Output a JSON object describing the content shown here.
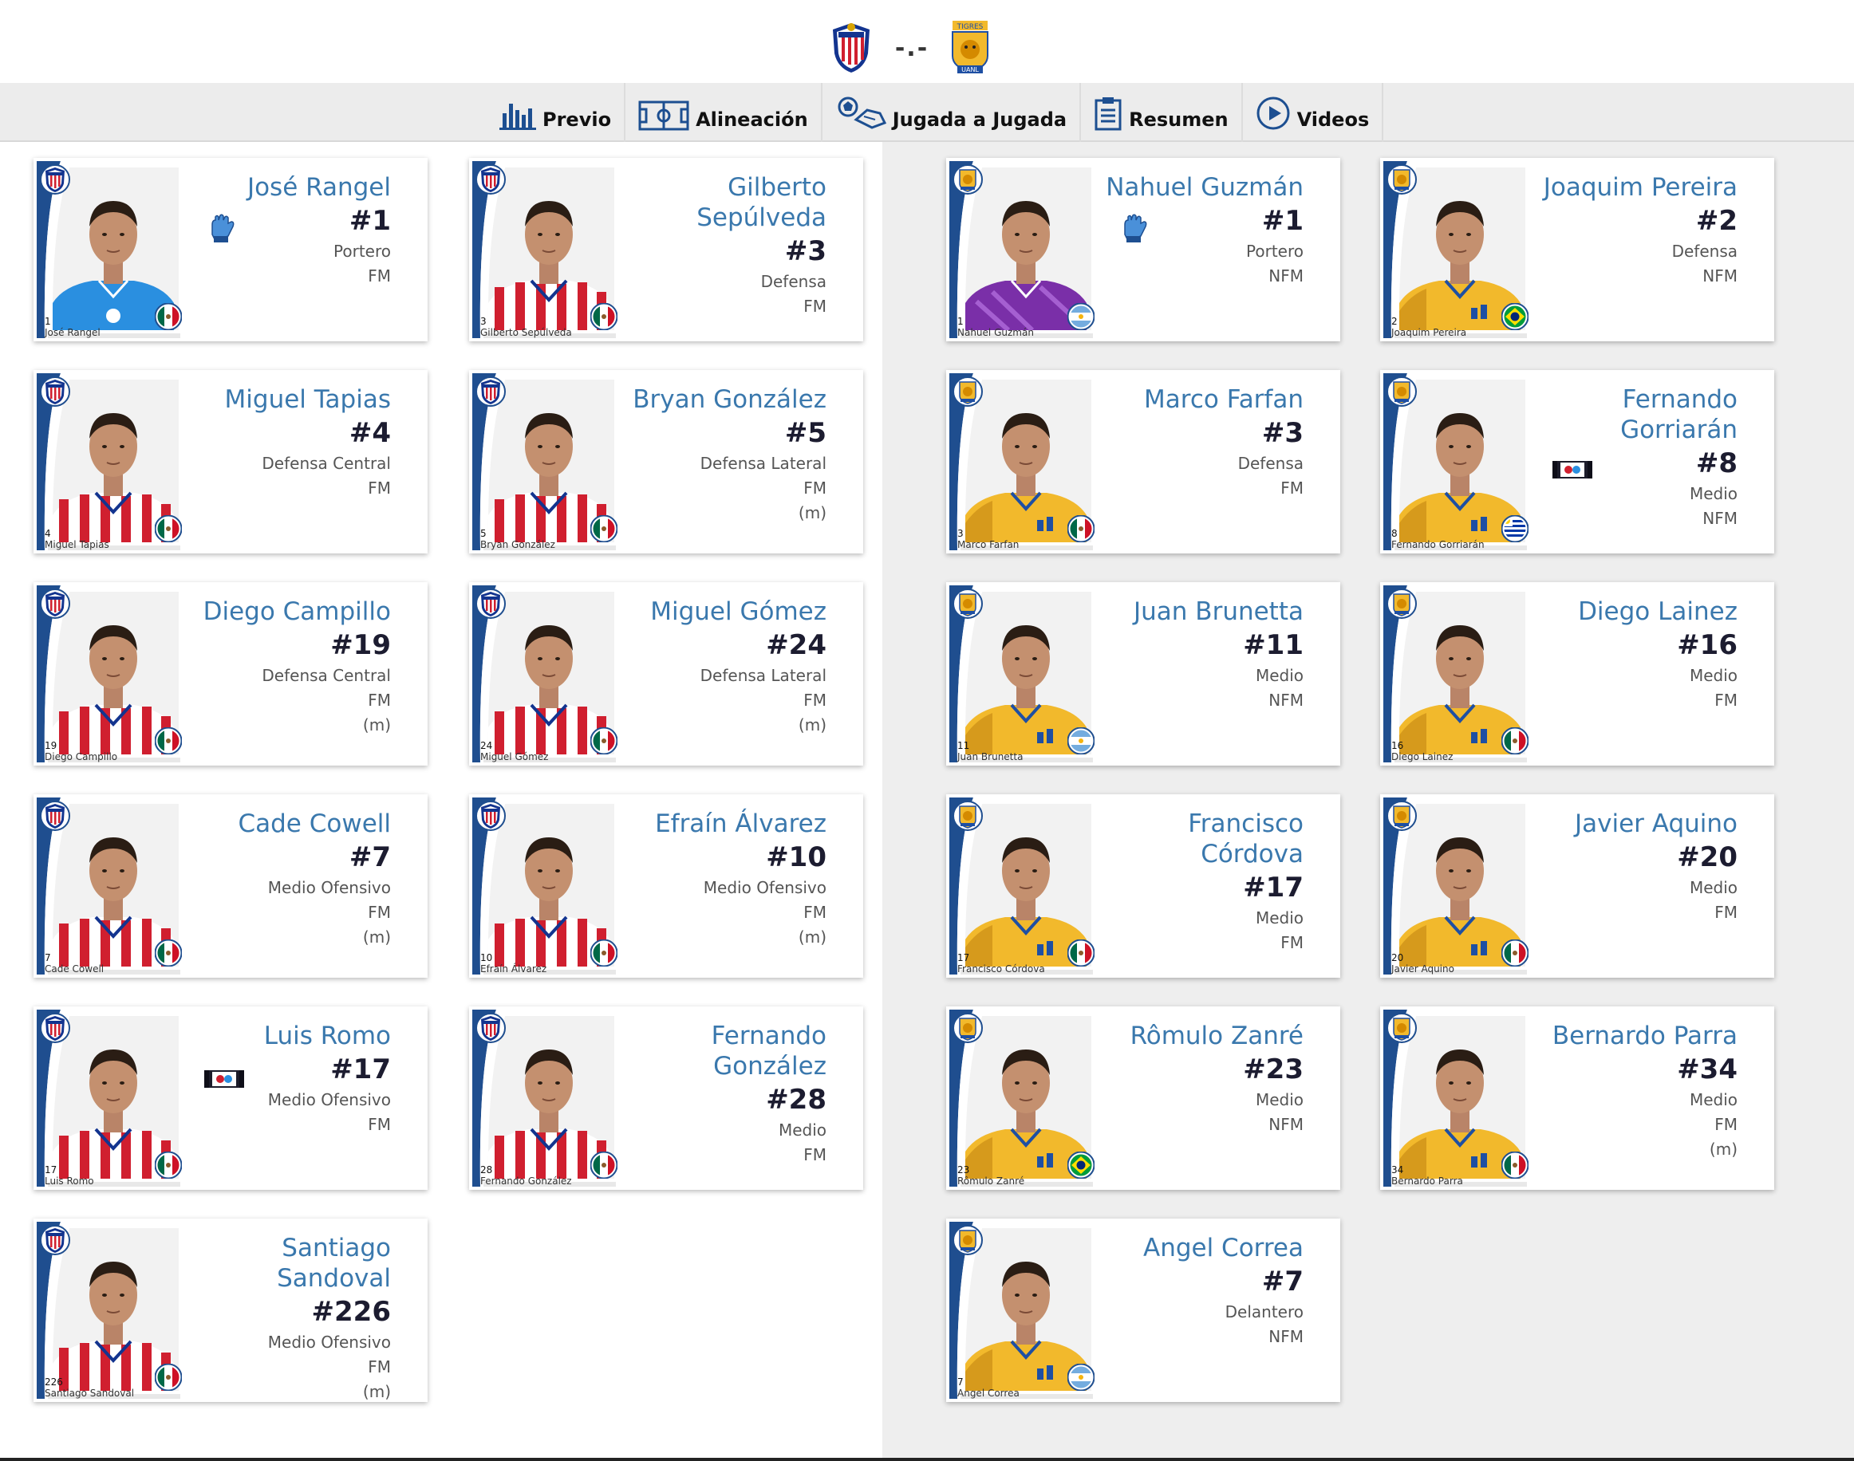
{
  "match": {
    "score": "-.-",
    "home_crest_icon": "chivas-crest-icon",
    "away_crest_icon": "tigres-crest-icon"
  },
  "nav": {
    "items": [
      {
        "label": "Previo",
        "icon": "bar-chart-icon"
      },
      {
        "label": "Alineación",
        "icon": "soccer-field-icon"
      },
      {
        "label": "Jugada a Jugada",
        "icon": "ball-play-icon"
      },
      {
        "label": "Resumen",
        "icon": "clipboard-icon"
      },
      {
        "label": "Videos",
        "icon": "play-circle-icon"
      }
    ]
  },
  "home": {
    "team": "chivas",
    "players": [
      {
        "name": "José Rangel",
        "number": "#1",
        "position": "Portero",
        "status": "FM",
        "sub": "",
        "caption_num": "1",
        "caption_name": "José Rangel",
        "flag": "mexico-flag-icon",
        "badge": "glove",
        "kit": "blue"
      },
      {
        "name": "Gilberto Sepúlveda",
        "number": "#3",
        "position": "Defensa",
        "status": "FM",
        "sub": "",
        "caption_num": "3",
        "caption_name": "Gilberto Sepúlveda",
        "flag": "mexico-flag-icon",
        "badge": "",
        "kit": "chivas"
      },
      {
        "name": "Miguel Tapias",
        "number": "#4",
        "position": "Defensa Central",
        "status": "FM",
        "sub": "",
        "caption_num": "4",
        "caption_name": "Miguel Tapias",
        "flag": "mexico-flag-icon",
        "badge": "",
        "kit": "chivas"
      },
      {
        "name": "Bryan González",
        "number": "#5",
        "position": "Defensa Lateral",
        "status": "FM",
        "sub": "(m)",
        "caption_num": "5",
        "caption_name": "Bryan González",
        "flag": "mexico-flag-icon",
        "badge": "",
        "kit": "chivas"
      },
      {
        "name": "Diego Campillo",
        "number": "#19",
        "position": "Defensa Central",
        "status": "FM",
        "sub": "(m)",
        "caption_num": "19",
        "caption_name": "Diego Campillo",
        "flag": "mexico-flag-icon",
        "badge": "",
        "kit": "chivas"
      },
      {
        "name": "Miguel Gómez",
        "number": "#24",
        "position": "Defensa Lateral",
        "status": "FM",
        "sub": "(m)",
        "caption_num": "24",
        "caption_name": "Miguel Gómez",
        "flag": "mexico-flag-icon",
        "badge": "",
        "kit": "chivas"
      },
      {
        "name": "Cade Cowell",
        "number": "#7",
        "position": "Medio Ofensivo",
        "status": "FM",
        "sub": "(m)",
        "caption_num": "7",
        "caption_name": "Cade Cowell",
        "flag": "mexico-flag-icon",
        "badge": "",
        "kit": "chivas"
      },
      {
        "name": "Efraín Álvarez",
        "number": "#10",
        "position": "Medio Ofensivo",
        "status": "FM",
        "sub": "(m)",
        "caption_num": "10",
        "caption_name": "Efraín Álvarez",
        "flag": "mexico-flag-icon",
        "badge": "",
        "kit": "chivas"
      },
      {
        "name": "Luis Romo",
        "number": "#17",
        "position": "Medio Ofensivo",
        "status": "FM",
        "sub": "",
        "caption_num": "17",
        "caption_name": "Luis Romo",
        "flag": "mexico-flag-icon",
        "badge": "armband",
        "kit": "chivas"
      },
      {
        "name": "Fernando González",
        "number": "#28",
        "position": "Medio",
        "status": "FM",
        "sub": "",
        "caption_num": "28",
        "caption_name": "Fernando González",
        "flag": "mexico-flag-icon",
        "badge": "",
        "kit": "chivas"
      },
      {
        "name": "Santiago Sandoval",
        "number": "#226",
        "position": "Medio Ofensivo",
        "status": "FM",
        "sub": "(m)",
        "caption_num": "226",
        "caption_name": "Santiago Sandoval",
        "flag": "mexico-flag-icon",
        "badge": "",
        "kit": "chivas"
      }
    ]
  },
  "away": {
    "team": "tigres",
    "players": [
      {
        "name": "Nahuel Guzmán",
        "number": "#1",
        "position": "Portero",
        "status": "NFM",
        "sub": "",
        "caption_num": "1",
        "caption_name": "Nahuel Guzmán",
        "flag": "argentina-flag-icon",
        "badge": "glove",
        "kit": "purple"
      },
      {
        "name": "Joaquim Pereira",
        "number": "#2",
        "position": "Defensa",
        "status": "NFM",
        "sub": "",
        "caption_num": "2",
        "caption_name": "Joaquim Pereira",
        "flag": "brazil-flag-icon",
        "badge": "",
        "kit": "tigres"
      },
      {
        "name": "Marco Farfan",
        "number": "#3",
        "position": "Defensa",
        "status": "FM",
        "sub": "",
        "caption_num": "3",
        "caption_name": "Marco Farfan",
        "flag": "mexico-flag-icon",
        "badge": "",
        "kit": "tigres"
      },
      {
        "name": "Fernando Gorriarán",
        "number": "#8",
        "position": "Medio",
        "status": "NFM",
        "sub": "",
        "caption_num": "8",
        "caption_name": "Fernando Gorriarán",
        "flag": "uruguay-flag-icon",
        "badge": "armband",
        "kit": "tigres"
      },
      {
        "name": "Juan Brunetta",
        "number": "#11",
        "position": "Medio",
        "status": "NFM",
        "sub": "",
        "caption_num": "11",
        "caption_name": "Juan Brunetta",
        "flag": "argentina-flag-icon",
        "badge": "",
        "kit": "tigres"
      },
      {
        "name": "Diego Lainez",
        "number": "#16",
        "position": "Medio",
        "status": "FM",
        "sub": "",
        "caption_num": "16",
        "caption_name": "Diego Lainez",
        "flag": "mexico-flag-icon",
        "badge": "",
        "kit": "tigres"
      },
      {
        "name": "Francisco Córdova",
        "number": "#17",
        "position": "Medio",
        "status": "FM",
        "sub": "",
        "caption_num": "17",
        "caption_name": "Francisco Córdova",
        "flag": "mexico-flag-icon",
        "badge": "",
        "kit": "tigres"
      },
      {
        "name": "Javier Aquino",
        "number": "#20",
        "position": "Medio",
        "status": "FM",
        "sub": "",
        "caption_num": "20",
        "caption_name": "Javier Aquino",
        "flag": "mexico-flag-icon",
        "badge": "",
        "kit": "tigres"
      },
      {
        "name": "Rômulo Zanré",
        "number": "#23",
        "position": "Medio",
        "status": "NFM",
        "sub": "",
        "caption_num": "23",
        "caption_name": "Rômulo Zanré",
        "flag": "brazil-flag-icon",
        "badge": "",
        "kit": "tigres"
      },
      {
        "name": "Bernardo Parra",
        "number": "#34",
        "position": "Medio",
        "status": "FM",
        "sub": "(m)",
        "caption_num": "34",
        "caption_name": "Bernardo Parra",
        "flag": "mexico-flag-icon",
        "badge": "",
        "kit": "tigres"
      },
      {
        "name": "Angel Correa",
        "number": "#7",
        "position": "Delantero",
        "status": "NFM",
        "sub": "",
        "caption_num": "7",
        "caption_name": "Angel Correa",
        "flag": "argentina-flag-icon",
        "badge": "",
        "kit": "tigres"
      }
    ]
  },
  "colors": {
    "name_blue": "#3a78ad",
    "number_dark": "#1c1c30",
    "chivas_red": "#d01f2f",
    "chivas_blue": "#13348f",
    "tigres_yellow": "#f2b92c",
    "tigres_blue": "#1e4fa3",
    "swoosh_blue": "#1f4e8f"
  }
}
